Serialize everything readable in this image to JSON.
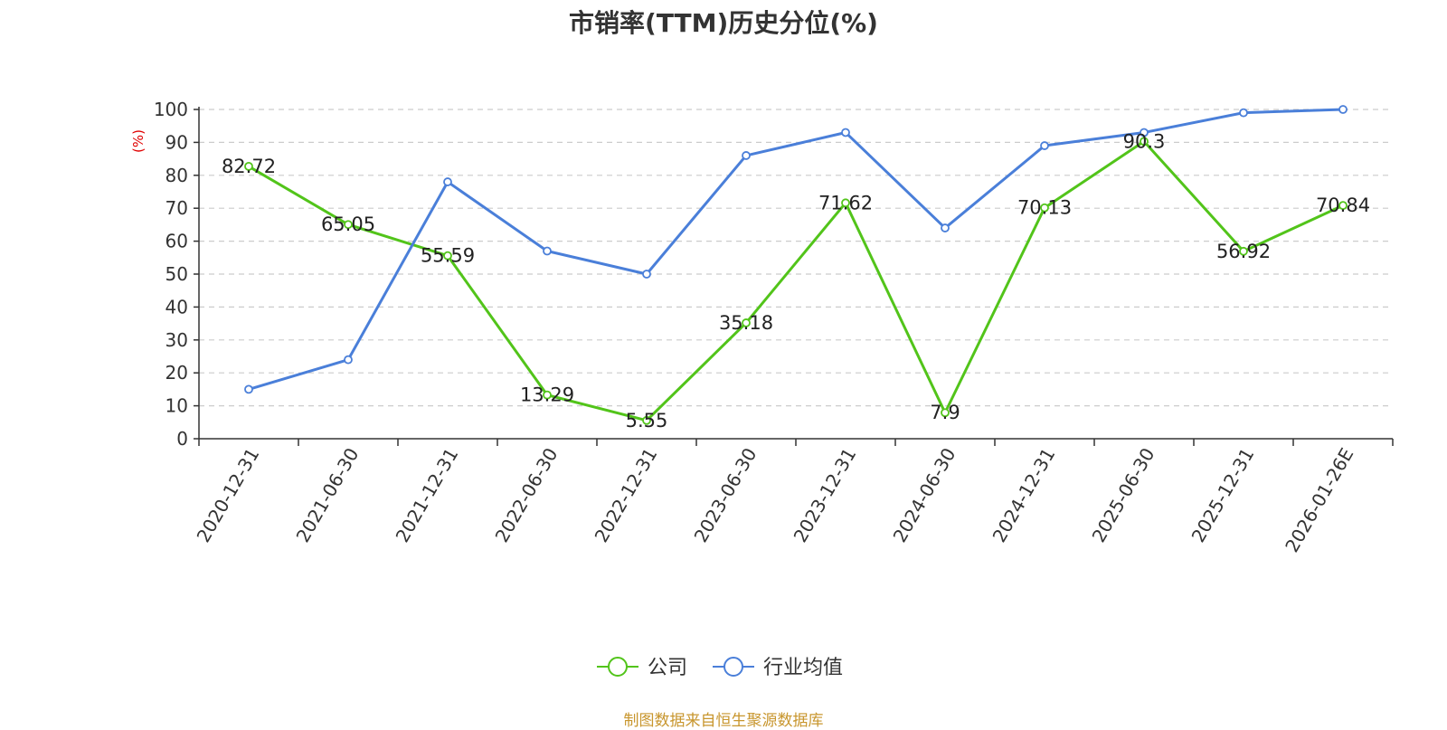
{
  "chart_data": {
    "type": "line",
    "title": "市销率(TTM)历史分位(%)",
    "ylabel": "(%)",
    "ylim": [
      0,
      100
    ],
    "yticks": [
      0,
      10,
      20,
      30,
      40,
      50,
      60,
      70,
      80,
      90,
      100
    ],
    "categories": [
      "2020-12-31",
      "2021-06-30",
      "2021-12-31",
      "2022-06-30",
      "2022-12-31",
      "2023-06-30",
      "2023-12-31",
      "2024-06-30",
      "2024-12-31",
      "2025-06-30",
      "2025-12-31",
      "2026-01-26E"
    ],
    "series": [
      {
        "name": "公司",
        "color": "#52c41a",
        "values": [
          82.72,
          65.05,
          55.59,
          13.29,
          5.55,
          35.18,
          71.62,
          7.9,
          70.13,
          90.3,
          56.92,
          70.84
        ],
        "labels": [
          "82.72",
          "65.05",
          "55.59",
          "13.29",
          "5.55",
          "35.18",
          "71.62",
          "7.9",
          "70.13",
          "90.3",
          "56.92",
          "70.84"
        ]
      },
      {
        "name": "行业均值",
        "color": "#4a7fd9",
        "values": [
          15,
          24,
          78,
          57,
          50,
          86,
          93,
          64,
          89,
          93,
          99,
          100
        ]
      }
    ],
    "grid": true,
    "legend": "bottom-center"
  },
  "source": "制图数据来自恒生聚源数据库"
}
